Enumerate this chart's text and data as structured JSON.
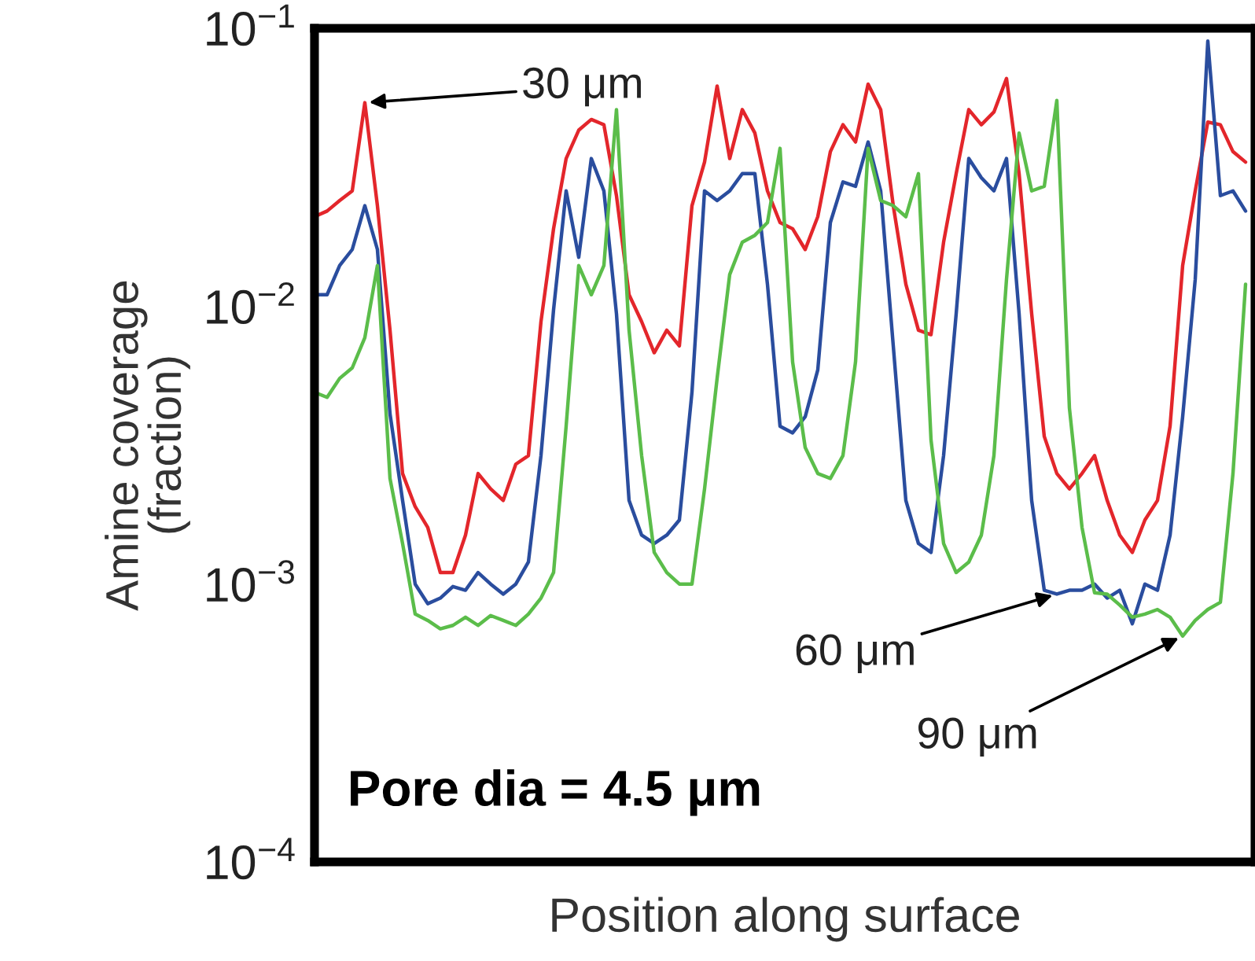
{
  "chart_data": {
    "type": "line",
    "xlabel": "Position along surface",
    "ylabel": "Amine coverage\n(fraction)",
    "categories": [
      null,
      null,
      null,
      null,
      null,
      null,
      null,
      null,
      null,
      null,
      null,
      null,
      null,
      null,
      null,
      null,
      null,
      null,
      null,
      null,
      null,
      null,
      null,
      null,
      null,
      null,
      null,
      null,
      null,
      null,
      null,
      null,
      null,
      null,
      null,
      null,
      null,
      null,
      null,
      null,
      null,
      null,
      null,
      null,
      null,
      null,
      null,
      null,
      null,
      null,
      null,
      null,
      null,
      null,
      null,
      null,
      null,
      null,
      null,
      null,
      null,
      null,
      null,
      null,
      null,
      null,
      null,
      null,
      null,
      null,
      null,
      null,
      null,
      null,
      null
    ],
    "log": "y",
    "ylim": [
      0.0001,
      0.1
    ],
    "yticks": [
      {
        "value": 0.1,
        "label": "10$^{−1}$"
      },
      {
        "value": 0.01,
        "label": "10$^{−2}$"
      },
      {
        "value": 0.001,
        "label": "10$^{−3}$"
      },
      {
        "value": 0.0001,
        "label": "10$^{−4}$"
      }
    ],
    "grid": false,
    "legend": false,
    "marker": "none",
    "line_style": "solid",
    "annotations": [
      "Pore dia = 4.5 μm"
    ],
    "series": [
      {
        "name": "30 μm",
        "color": "#e3262b",
        "values": [
          0.021,
          0.022,
          0.024,
          0.026,
          0.054,
          0.023,
          0.0082,
          0.0025,
          0.0019,
          0.0016,
          0.0011,
          0.0011,
          0.0015,
          0.0025,
          0.0022,
          0.002,
          0.0027,
          0.0029,
          0.0088,
          0.019,
          0.034,
          0.043,
          0.047,
          0.045,
          0.025,
          0.011,
          0.0088,
          0.0068,
          0.0082,
          0.0072,
          0.023,
          0.033,
          0.062,
          0.034,
          0.051,
          0.042,
          0.026,
          0.02,
          0.019,
          0.016,
          0.021,
          0.036,
          0.045,
          0.039,
          0.063,
          0.051,
          0.023,
          0.012,
          0.0082,
          0.0079,
          0.017,
          0.03,
          0.051,
          0.045,
          0.05,
          0.066,
          0.03,
          0.0094,
          0.0034,
          0.0025,
          0.0022,
          0.0025,
          0.0029,
          0.002,
          0.0015,
          0.0013,
          0.0017,
          0.002,
          0.0037,
          0.014,
          0.026,
          0.046,
          0.045,
          0.036,
          0.033
        ]
      },
      {
        "name": "60 μm",
        "color": "#2a4d9e",
        "values": [
          0.011,
          0.011,
          0.014,
          0.016,
          0.023,
          0.016,
          0.0041,
          0.002,
          0.001,
          0.00085,
          0.00089,
          0.00098,
          0.00095,
          0.0011,
          0.001,
          0.00092,
          0.001,
          0.0012,
          0.0029,
          0.0097,
          0.026,
          0.015,
          0.034,
          0.026,
          0.0094,
          0.002,
          0.0015,
          0.0014,
          0.0015,
          0.0017,
          0.0049,
          0.026,
          0.024,
          0.026,
          0.03,
          0.03,
          0.012,
          0.0037,
          0.0035,
          0.004,
          0.0059,
          0.02,
          0.028,
          0.027,
          0.039,
          0.026,
          0.0072,
          0.002,
          0.0014,
          0.0013,
          0.0029,
          0.0094,
          0.034,
          0.029,
          0.026,
          0.034,
          0.0094,
          0.002,
          0.00095,
          0.00092,
          0.00095,
          0.00095,
          0.001,
          0.00089,
          0.00095,
          0.00072,
          0.001,
          0.00095,
          0.0015,
          0.004,
          0.0125,
          0.09,
          0.025,
          0.026,
          0.022
        ]
      },
      {
        "name": "90 μm",
        "color": "#5bbd4a",
        "values": [
          0.0049,
          0.0047,
          0.0055,
          0.006,
          0.0077,
          0.014,
          0.0024,
          0.0014,
          0.00078,
          0.00074,
          0.00069,
          0.00071,
          0.00076,
          0.00071,
          0.00077,
          0.00074,
          0.00071,
          0.00078,
          0.00089,
          0.0011,
          0.0037,
          0.014,
          0.011,
          0.014,
          0.051,
          0.0082,
          0.0029,
          0.0013,
          0.0011,
          0.001,
          0.001,
          0.0022,
          0.0055,
          0.013,
          0.017,
          0.018,
          0.02,
          0.037,
          0.0063,
          0.0031,
          0.0025,
          0.0024,
          0.0029,
          0.0063,
          0.037,
          0.024,
          0.023,
          0.021,
          0.03,
          0.0033,
          0.0014,
          0.0011,
          0.0012,
          0.0015,
          0.0029,
          0.0125,
          0.042,
          0.026,
          0.027,
          0.055,
          0.0043,
          0.0016,
          0.00093,
          0.00092,
          0.00084,
          0.00076,
          0.00078,
          0.00081,
          0.00076,
          0.00065,
          0.00074,
          0.00081,
          0.00086,
          0.0025,
          0.012
        ]
      }
    ]
  }
}
